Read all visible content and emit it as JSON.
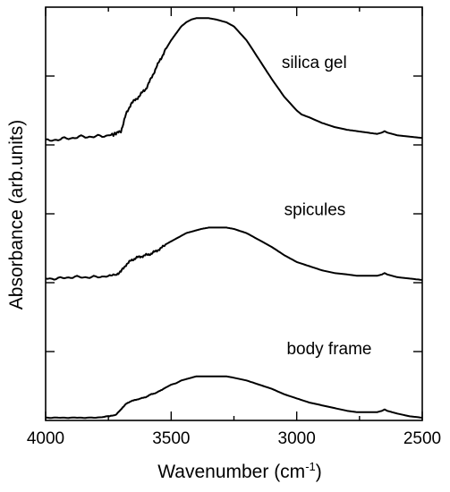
{
  "chart_data": {
    "type": "line",
    "title": "",
    "xlabel": "Wavenumber (cm",
    "xlabel_sup": "-1",
    "xlabel_close": ")",
    "ylabel": "Absorbance (arb.units)",
    "xlim": [
      4000,
      2500
    ],
    "x_reversed": true,
    "ylim": [
      0,
      3
    ],
    "x_ticks": [
      4000,
      3500,
      3000,
      2500
    ],
    "x_tick_labels": [
      "4000",
      "3500",
      "3000",
      "2500"
    ],
    "x_minor_ticks": [
      3750,
      3250,
      2750
    ],
    "y_ticks": [
      0.5,
      1,
      1.5,
      2,
      2.5
    ],
    "y_tick_labels": [],
    "grid": false,
    "legend": "none",
    "annotations": [
      {
        "text": "silica gel",
        "x": 3060,
        "y": 2.56
      },
      {
        "text": "spicules",
        "x": 3050,
        "y": 1.49
      },
      {
        "text": "body frame",
        "x": 3040,
        "y": 0.48
      }
    ],
    "series": [
      {
        "x": [
          4000,
          3950,
          3900,
          3850,
          3800,
          3750,
          3720,
          3700,
          3680,
          3660,
          3640,
          3620,
          3600,
          3580,
          3560,
          3540,
          3520,
          3500,
          3480,
          3460,
          3440,
          3420,
          3400,
          3380,
          3350,
          3320,
          3300,
          3280,
          3250,
          3200,
          3150,
          3100,
          3050,
          3000,
          2980,
          2950,
          2900,
          2850,
          2800,
          2760,
          2720,
          2680,
          2660,
          2650,
          2640,
          2620,
          2600,
          2550,
          2500
        ],
        "y": [
          2.03,
          2.04,
          2.05,
          2.06,
          2.06,
          2.07,
          2.08,
          2.1,
          2.22,
          2.3,
          2.33,
          2.37,
          2.41,
          2.48,
          2.56,
          2.63,
          2.7,
          2.76,
          2.81,
          2.86,
          2.89,
          2.91,
          2.92,
          2.92,
          2.92,
          2.91,
          2.9,
          2.89,
          2.86,
          2.76,
          2.62,
          2.48,
          2.35,
          2.25,
          2.22,
          2.2,
          2.16,
          2.13,
          2.11,
          2.1,
          2.09,
          2.08,
          2.09,
          2.1,
          2.09,
          2.08,
          2.07,
          2.06,
          2.05
        ]
      },
      {
        "x": [
          4000,
          3950,
          3900,
          3850,
          3800,
          3750,
          3720,
          3700,
          3680,
          3660,
          3640,
          3620,
          3600,
          3580,
          3560,
          3540,
          3520,
          3500,
          3480,
          3460,
          3440,
          3420,
          3400,
          3380,
          3350,
          3320,
          3300,
          3280,
          3250,
          3200,
          3150,
          3100,
          3050,
          3000,
          2950,
          2900,
          2850,
          2800,
          2760,
          2720,
          2680,
          2660,
          2650,
          2640,
          2620,
          2600,
          2550,
          2500
        ],
        "y": [
          1.03,
          1.03,
          1.04,
          1.04,
          1.04,
          1.05,
          1.06,
          1.08,
          1.13,
          1.16,
          1.18,
          1.19,
          1.2,
          1.21,
          1.23,
          1.25,
          1.28,
          1.3,
          1.32,
          1.34,
          1.36,
          1.37,
          1.38,
          1.39,
          1.4,
          1.4,
          1.4,
          1.4,
          1.39,
          1.36,
          1.31,
          1.26,
          1.2,
          1.15,
          1.12,
          1.09,
          1.07,
          1.06,
          1.05,
          1.05,
          1.05,
          1.06,
          1.07,
          1.06,
          1.05,
          1.04,
          1.03,
          1.02
        ]
      },
      {
        "x": [
          4000,
          3950,
          3900,
          3850,
          3800,
          3750,
          3720,
          3700,
          3690,
          3680,
          3660,
          3640,
          3620,
          3600,
          3580,
          3560,
          3540,
          3520,
          3500,
          3480,
          3460,
          3440,
          3420,
          3400,
          3380,
          3350,
          3320,
          3300,
          3280,
          3250,
          3200,
          3150,
          3100,
          3050,
          3000,
          2950,
          2900,
          2850,
          2800,
          2760,
          2720,
          2680,
          2660,
          2650,
          2640,
          2620,
          2600,
          2550,
          2500
        ],
        "y": [
          0.02,
          0.02,
          0.02,
          0.02,
          0.02,
          0.03,
          0.04,
          0.08,
          0.1,
          0.12,
          0.14,
          0.15,
          0.16,
          0.17,
          0.19,
          0.2,
          0.22,
          0.24,
          0.26,
          0.27,
          0.29,
          0.3,
          0.31,
          0.32,
          0.32,
          0.32,
          0.32,
          0.32,
          0.32,
          0.31,
          0.29,
          0.26,
          0.23,
          0.19,
          0.16,
          0.13,
          0.11,
          0.09,
          0.07,
          0.06,
          0.06,
          0.06,
          0.07,
          0.08,
          0.07,
          0.06,
          0.05,
          0.03,
          0.02
        ]
      }
    ]
  }
}
